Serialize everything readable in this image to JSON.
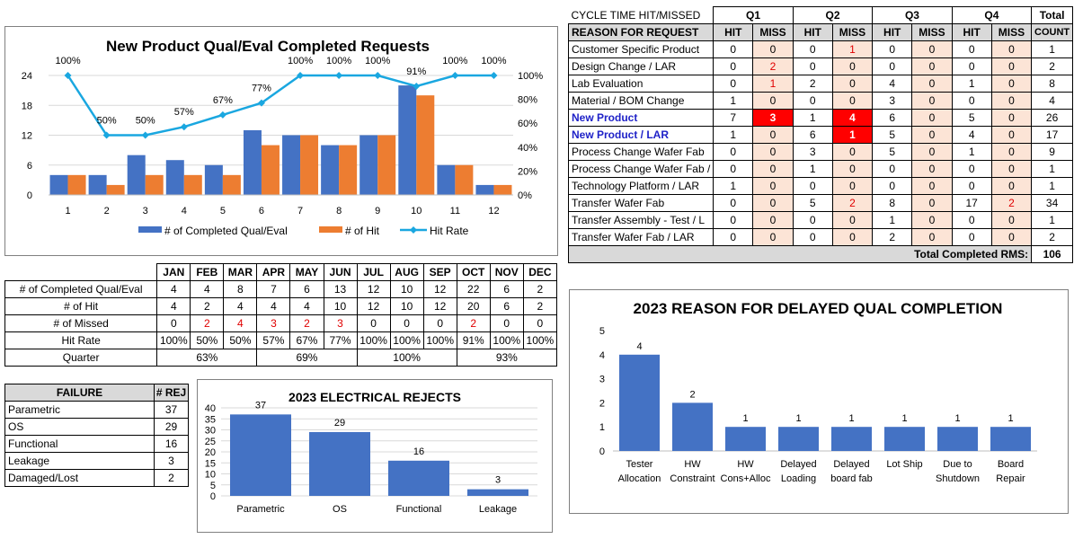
{
  "colors": {
    "blue": "#4472c4",
    "orange": "#ed7d31",
    "line": "#1aa7e0",
    "miss_bg": "#fce4d6",
    "miss_red": "#ff0000",
    "grey": "#d9d9d9"
  },
  "chart_data": [
    {
      "type": "bar+line",
      "title": "New Product Qual/Eval Completed Requests",
      "categories": [
        "1",
        "2",
        "3",
        "4",
        "5",
        "6",
        "7",
        "8",
        "9",
        "10",
        "11",
        "12"
      ],
      "series": [
        {
          "name": "# of Completed Qual/Eval",
          "values": [
            4,
            4,
            8,
            7,
            6,
            13,
            12,
            10,
            12,
            22,
            6,
            2
          ]
        },
        {
          "name": "# of Hit",
          "values": [
            4,
            2,
            4,
            4,
            4,
            10,
            12,
            10,
            12,
            20,
            6,
            2
          ]
        },
        {
          "name": "Hit Rate",
          "axis": "secondary",
          "values": [
            100,
            50,
            50,
            57,
            67,
            77,
            100,
            100,
            100,
            91,
            100,
            100
          ],
          "labels": [
            "100%",
            "50%",
            "50%",
            "57%",
            "67%",
            "77%",
            "100%",
            "100%",
            "100%",
            "91%",
            "100%",
            "100%"
          ]
        }
      ],
      "y_ticks": [
        "0",
        "6",
        "12",
        "18",
        "24"
      ],
      "ylim": [
        0,
        24
      ],
      "y2_ticks": [
        "0%",
        "20%",
        "40%",
        "60%",
        "80%",
        "100%"
      ],
      "y2lim": [
        0,
        100
      ]
    },
    {
      "type": "bar",
      "title": "2023 ELECTRICAL REJECTS",
      "categories": [
        "Parametric",
        "OS",
        "Functional",
        "Leakage"
      ],
      "values": [
        37,
        29,
        16,
        3
      ],
      "ylim": [
        0,
        40
      ],
      "y_ticks": [
        "0",
        "5",
        "10",
        "15",
        "20",
        "25",
        "30",
        "35",
        "40"
      ]
    },
    {
      "type": "bar",
      "title": "2023 REASON FOR DELAYED QUAL COMPLETION",
      "categories": [
        [
          "Tester",
          "Allocation"
        ],
        [
          "HW",
          "Constraint"
        ],
        [
          "HW",
          "Cons+Alloc"
        ],
        [
          "Delayed",
          "Loading"
        ],
        [
          "Delayed",
          "board fab"
        ],
        [
          "Lot Ship",
          ""
        ],
        [
          "Due to",
          "Shutdown"
        ],
        [
          "Board",
          "Repair"
        ]
      ],
      "values": [
        4,
        2,
        1,
        1,
        1,
        1,
        1,
        1
      ],
      "ylim": [
        0,
        5
      ],
      "y_ticks": [
        "0",
        "1",
        "2",
        "3",
        "4",
        "5"
      ]
    }
  ],
  "cycle": {
    "title": "CYCLE TIME HIT/MISSED",
    "quarters": [
      "Q1",
      "Q2",
      "Q3",
      "Q4"
    ],
    "total_label": "Total",
    "reason_header": "REASON FOR REQUEST",
    "hit_label": "HIT",
    "miss_label": "MISS",
    "count_label": "COUNT",
    "rows": [
      {
        "name": "Customer Specific Product",
        "v": [
          "0",
          "0",
          "0",
          "1",
          "0",
          "0",
          "0",
          "0"
        ],
        "count": "1"
      },
      {
        "name": "Design Change / LAR",
        "v": [
          "0",
          "2",
          "0",
          "0",
          "0",
          "0",
          "0",
          "0"
        ],
        "count": "2"
      },
      {
        "name": "Lab Evaluation",
        "v": [
          "0",
          "1",
          "2",
          "0",
          "4",
          "0",
          "1",
          "0"
        ],
        "count": "8"
      },
      {
        "name": "Material / BOM Change",
        "v": [
          "1",
          "0",
          "0",
          "0",
          "3",
          "0",
          "0",
          "0"
        ],
        "count": "4"
      },
      {
        "name": "New Product",
        "v": [
          "7",
          "3",
          "1",
          "4",
          "6",
          "0",
          "5",
          "0"
        ],
        "count": "26",
        "hl": true
      },
      {
        "name": "New Product / LAR",
        "v": [
          "1",
          "0",
          "6",
          "1",
          "5",
          "0",
          "4",
          "0"
        ],
        "count": "17",
        "hl": true
      },
      {
        "name": "Process Change Wafer Fab",
        "v": [
          "0",
          "0",
          "3",
          "0",
          "5",
          "0",
          "1",
          "0"
        ],
        "count": "9"
      },
      {
        "name": "Process Change Wafer Fab /",
        "v": [
          "0",
          "0",
          "1",
          "0",
          "0",
          "0",
          "0",
          "0"
        ],
        "count": "1"
      },
      {
        "name": "Technology Platform / LAR",
        "v": [
          "1",
          "0",
          "0",
          "0",
          "0",
          "0",
          "0",
          "0"
        ],
        "count": "1"
      },
      {
        "name": "Transfer Wafer Fab",
        "v": [
          "0",
          "0",
          "5",
          "2",
          "8",
          "0",
          "17",
          "2"
        ],
        "count": "34"
      },
      {
        "name": "Transfer Assembly - Test / L",
        "v": [
          "0",
          "0",
          "0",
          "0",
          "1",
          "0",
          "0",
          "0"
        ],
        "count": "1"
      },
      {
        "name": "Transfer Wafer Fab / LAR",
        "v": [
          "0",
          "0",
          "0",
          "0",
          "2",
          "0",
          "0",
          "0"
        ],
        "count": "2"
      }
    ],
    "total_label_rms": "Total Completed RMS:",
    "total_value": "106"
  },
  "monthly": {
    "months": [
      "JAN",
      "FEB",
      "MAR",
      "APR",
      "MAY",
      "JUN",
      "JUL",
      "AUG",
      "SEP",
      "OCT",
      "NOV",
      "DEC"
    ],
    "rows": [
      {
        "label": "# of Completed Qual/Eval",
        "v": [
          "4",
          "4",
          "8",
          "7",
          "6",
          "13",
          "12",
          "10",
          "12",
          "22",
          "6",
          "2"
        ]
      },
      {
        "label": "# of Hit",
        "v": [
          "4",
          "2",
          "4",
          "4",
          "4",
          "10",
          "12",
          "10",
          "12",
          "20",
          "6",
          "2"
        ]
      },
      {
        "label": "# of Missed",
        "v": [
          "0",
          "2",
          "4",
          "3",
          "2",
          "3",
          "0",
          "0",
          "0",
          "2",
          "0",
          "0"
        ],
        "red": true
      },
      {
        "label": "Hit Rate",
        "v": [
          "100%",
          "50%",
          "50%",
          "57%",
          "67%",
          "77%",
          "100%",
          "100%",
          "100%",
          "91%",
          "100%",
          "100%"
        ]
      }
    ],
    "quarter_label": "Quarter",
    "quarters": [
      "63%",
      "69%",
      "100%",
      "93%"
    ]
  },
  "failures": {
    "header_failure": "FAILURE",
    "header_rej": "# REJ",
    "rows": [
      {
        "name": "Parametric",
        "v": "37"
      },
      {
        "name": "OS",
        "v": "29"
      },
      {
        "name": "Functional",
        "v": "16"
      },
      {
        "name": "Leakage",
        "v": "3"
      },
      {
        "name": "Damaged/Lost",
        "v": "2"
      }
    ]
  }
}
